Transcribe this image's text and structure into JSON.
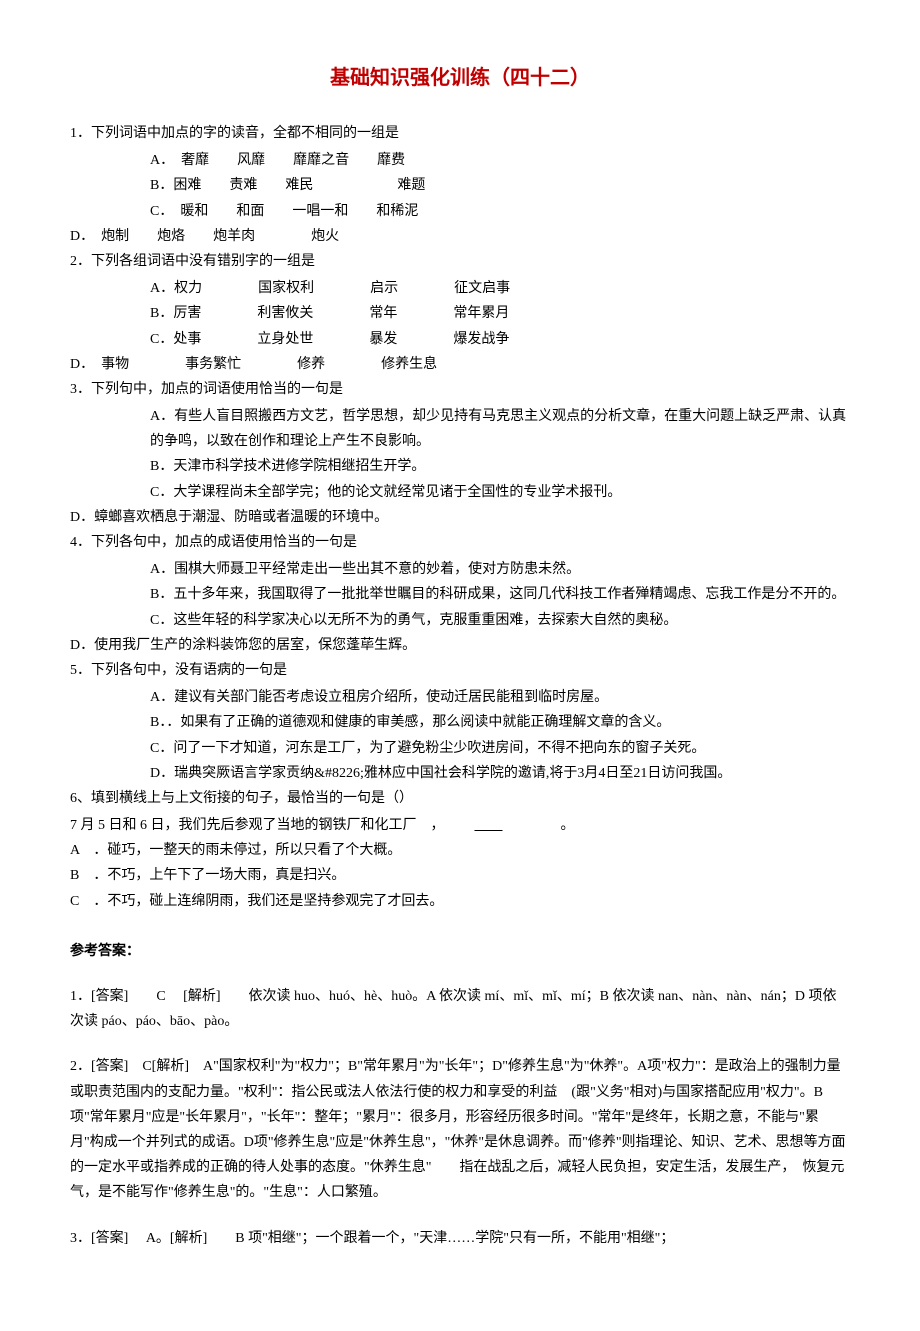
{
  "title": "基础知识强化训练（四十二）",
  "q1": {
    "stem": "1．下列词语中加点的字的读音，全都不相同的一组是",
    "a": "A．　奢靡　　风靡　　靡靡之音　　靡费",
    "b": "B．困难　　责难　　难民　　　　　　难题",
    "c": "C．　暖和　　和面　　一唱一和　　和稀泥",
    "d": "D．　炮制　　炮烙　　炮羊肉　　　　炮火"
  },
  "q2": {
    "stem": "2．下列各组词语中没有错别字的一组是",
    "a": "A．权力　　　　国家权利　　　　启示　　　　征文启事",
    "b": "B．厉害　　　　利害攸关　　　　常年　　　　常年累月",
    "c": "C．处事　　　　立身处世　　　　暴发　　　　爆发战争",
    "d": "D．　事物　　　　事务繁忙　　　　修养　　　　修养生息"
  },
  "q3": {
    "stem": "3．下列句中，加点的词语使用恰当的一句是",
    "a": "A．有些人盲目照搬西方文艺，哲学思想，却少见持有马克思主义观点的分析文章，在重大问题上缺乏严肃、认真的争鸣，以致在创作和理论上产生不良影响。",
    "b": "B．天津市科学技术进修学院相继招生开学。",
    "c": "C．大学课程尚未全部学完；他的论文就经常见诸于全国性的专业学术报刊。",
    "d": "D．蟑螂喜欢栖息于潮湿、防暗或者温暖的环境中。"
  },
  "q4": {
    "stem": "4．下列各句中，加点的成语使用恰当的一句是",
    "a": "A．围棋大师聂卫平经常走出一些出其不意的妙着，使对方防患未然。",
    "b": "B．五十多年来，我国取得了一批批举世瞩目的科研成果，这同几代科技工作者殚精竭虑、忘我工作是分不开的。",
    "c": "C．这些年轻的科学家决心以无所不为的勇气，克服重重困难，去探索大自然的奥秘。",
    "d": "D．使用我厂生产的涂料装饰您的居室，保您蓬荜生辉。"
  },
  "q5": {
    "stem": "5．下列各句中，没有语病的一句是",
    "a": "A．建议有关部门能否考虑设立租房介绍所，使动迁居民能租到临时房屋。",
    "b": "B．．如果有了正确的道德观和健康的审美感，那么阅读中就能正确理解文章的含义。",
    "c": "C．问了一下才知道，河东是工厂，为了避免粉尘少吹进房间，不得不把向东的窗子关死。",
    "d": "D．瑞典突厥语言学家贡纳&#8226;雅林应中国社会科学院的邀请,将于3月4日至21日访问我国。"
  },
  "q6": {
    "stem": "6、填到横线上与上文衔接的句子，最恰当的一句是（）",
    "context1": "7 月 5 日和 6 日，我们先后参观了当地的钢铁厂和化工厂　，",
    "context2": "　　。",
    "a": "A　．碰巧，一整天的雨未停过，所以只看了个大概。",
    "b": "B　．不巧，上午下了一场大雨，真是扫兴。",
    "c": "C　．不巧，碰上连绵阴雨，我们还是坚持参观完了才回去。"
  },
  "answers_header": "参考答案：",
  "ans1": "1．[答案]　　C　 [解析]　　依次读 huo、huó、hè、huò。A 依次读 mí、mǐ、mǐ、mí；B 依次读 nan、nàn、nàn、nán；D 项依次读 páo、páo、bāo、pào。",
  "ans2": "2．[答案]　C[解析]　A\"国家权利\"为\"权力\"；B\"常年累月\"为\"长年\"；D\"修养生息\"为\"休养\"。A项\"权力\"：是政治上的强制力量或职责范围内的支配力量。\"权利\"：指公民或法人依法行使的权力和享受的利益　(跟\"义务\"相对)与国家搭配应用\"权力\"。B项\"常年累月\"应是\"长年累月\"，\"长年\"：整年；\"累月\"：很多月，形容经历很多时间。\"常年\"是终年，长期之意，不能与\"累月\"构成一个并列式的成语。D项\"修养生息\"应是\"休养生息\"，\"休养\"是休息调养。而\"修养\"则指理论、知识、艺术、思想等方面的一定水平或指养成的正确的待人处事的态度。\"休养生息\"　　指在战乱之后，减轻人民负担，安定生活，发展生产，　恢复元气，是不能写作\"修养生息\"的。\"生息\"：人口繁殖。",
  "ans3": "3．[答案]　 A。[解析]　　B 项\"相继\"；一个跟着一个，\"天津……学院\"只有一所，不能用\"相继\"；"
}
